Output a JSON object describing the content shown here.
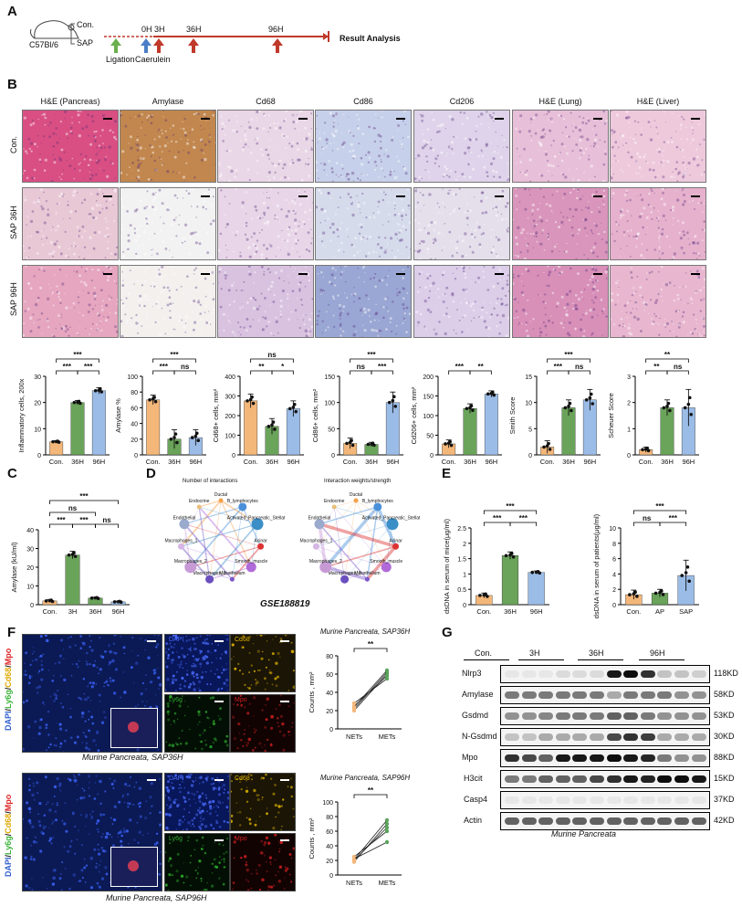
{
  "panelA": {
    "letter": "A",
    "strain": "C57Bl/6",
    "con": "Con.",
    "sap": "SAP",
    "t0": "0H",
    "t3": "3H",
    "t36": "36H",
    "t96": "96H",
    "ligation": "Ligation",
    "caerulein": "Caerulein",
    "result": "Result Analysis",
    "colors": {
      "ligation": "#6ab04c",
      "caerulein": "#4a7ec6",
      "injury": "#c0392b"
    }
  },
  "panelB": {
    "letter": "B",
    "columns": [
      "H&E (Pancreas)",
      "Amylase",
      "Cd68",
      "Cd86",
      "Cd206",
      "H&E (Lung)",
      "H&E (Liver)"
    ],
    "rows": [
      "Con.",
      "SAP 36H",
      "SAP 96H"
    ]
  },
  "groups3": [
    "Con.",
    "36H",
    "96H"
  ],
  "groups4": [
    "Con.",
    "3H",
    "36H",
    "96H"
  ],
  "colors": {
    "con": "#f4b77a",
    "h3": "#6aa35a",
    "h36": "#6aa35a",
    "h96": "#9bbce6",
    "ap": "#6aa35a",
    "sap": "#9bbce6"
  },
  "chart_data": [
    {
      "type": "bar",
      "id": "b1",
      "ylabel": "Inflammatory cells, 200x",
      "categories": [
        "Con.",
        "36H",
        "96H"
      ],
      "values": [
        5,
        20,
        24.5
      ],
      "errors": [
        0.4,
        0.8,
        1.2
      ],
      "ylim": [
        0,
        30
      ],
      "ticks": [
        0,
        10,
        20,
        30
      ],
      "sig": [
        {
          "a": 0,
          "b": 2,
          "t": "***",
          "lvl": 2
        },
        {
          "a": 0,
          "b": 1,
          "t": "***",
          "lvl": 1
        },
        {
          "a": 1,
          "b": 2,
          "t": "***",
          "lvl": 1
        }
      ]
    },
    {
      "type": "bar",
      "id": "b2",
      "ylabel": "Amylase %",
      "categories": [
        "Con.",
        "36H",
        "96H"
      ],
      "values": [
        70,
        20,
        22
      ],
      "errors": [
        6,
        12,
        10
      ],
      "ylim": [
        0,
        100
      ],
      "ticks": [
        0,
        20,
        40,
        60,
        80,
        100
      ],
      "sig": [
        {
          "a": 0,
          "b": 2,
          "t": "***",
          "lvl": 2
        },
        {
          "a": 0,
          "b": 1,
          "t": "***",
          "lvl": 1
        },
        {
          "a": 1,
          "b": 2,
          "t": "ns",
          "lvl": 1
        }
      ]
    },
    {
      "type": "bar",
      "id": "b3",
      "ylabel": "Cd68+ cells, mm²",
      "categories": [
        "Con.",
        "36H",
        "96H"
      ],
      "values": [
        275,
        145,
        235
      ],
      "errors": [
        35,
        40,
        40
      ],
      "ylim": [
        0,
        400
      ],
      "ticks": [
        0,
        100,
        200,
        300,
        400
      ],
      "sig": [
        {
          "a": 0,
          "b": 2,
          "t": "ns",
          "lvl": 2
        },
        {
          "a": 0,
          "b": 1,
          "t": "**",
          "lvl": 1
        },
        {
          "a": 1,
          "b": 2,
          "t": "*",
          "lvl": 1
        }
      ]
    },
    {
      "type": "bar",
      "id": "b4",
      "ylabel": "Cd86+ cells, mm²",
      "categories": [
        "Con.",
        "36H",
        "96H"
      ],
      "values": [
        22,
        20,
        100
      ],
      "errors": [
        10,
        4,
        20
      ],
      "ylim": [
        0,
        150
      ],
      "ticks": [
        0,
        50,
        100,
        150
      ],
      "sig": [
        {
          "a": 0,
          "b": 2,
          "t": "***",
          "lvl": 2
        },
        {
          "a": 0,
          "b": 1,
          "t": "ns",
          "lvl": 1
        },
        {
          "a": 1,
          "b": 2,
          "t": "***",
          "lvl": 1
        }
      ]
    },
    {
      "type": "bar",
      "id": "b5",
      "ylabel": "Cd206+ cells, mm²",
      "categories": [
        "Con.",
        "36H",
        "96H"
      ],
      "values": [
        28,
        118,
        155
      ],
      "errors": [
        10,
        12,
        8
      ],
      "ylim": [
        0,
        200
      ],
      "ticks": [
        0,
        50,
        100,
        150,
        200
      ],
      "sig": [
        {
          "a": 0,
          "b": 1,
          "t": "***",
          "lvl": 1
        },
        {
          "a": 1,
          "b": 2,
          "t": "**",
          "lvl": 1
        }
      ]
    },
    {
      "type": "bar",
      "id": "b6",
      "ylabel": "Smith Score",
      "categories": [
        "Con.",
        "36H",
        "96H"
      ],
      "values": [
        1.5,
        9,
        10.5
      ],
      "errors": [
        1.2,
        1.5,
        2
      ],
      "ylim": [
        0,
        15
      ],
      "ticks": [
        0,
        5,
        10,
        15
      ],
      "sig": [
        {
          "a": 0,
          "b": 2,
          "t": "***",
          "lvl": 2
        },
        {
          "a": 0,
          "b": 1,
          "t": "***",
          "lvl": 1
        },
        {
          "a": 1,
          "b": 2,
          "t": "ns",
          "lvl": 1
        }
      ]
    },
    {
      "type": "bar",
      "id": "b7",
      "ylabel": "Scheuer Score",
      "categories": [
        "Con.",
        "36H",
        "96H"
      ],
      "values": [
        0.2,
        1.8,
        1.8
      ],
      "errors": [
        0.1,
        0.3,
        0.7
      ],
      "ylim": [
        0,
        3
      ],
      "ticks": [
        0,
        1,
        2,
        3
      ],
      "sig": [
        {
          "a": 0,
          "b": 2,
          "t": "**",
          "lvl": 2
        },
        {
          "a": 0,
          "b": 1,
          "t": "**",
          "lvl": 1
        },
        {
          "a": 1,
          "b": 2,
          "t": "ns",
          "lvl": 1
        }
      ]
    },
    {
      "type": "bar",
      "id": "c",
      "ylabel": "Amylase (kU/ml)",
      "categories": [
        "Con.",
        "3H",
        "36H",
        "96H"
      ],
      "values": [
        2,
        26.5,
        3.5,
        1.5
      ],
      "errors": [
        0.8,
        2,
        0.5,
        0.4
      ],
      "ylim": [
        0,
        40
      ],
      "ticks": [
        0,
        10,
        20,
        30,
        40
      ],
      "sig": [
        {
          "a": 0,
          "b": 3,
          "t": "***",
          "lvl": 3
        },
        {
          "a": 0,
          "b": 2,
          "t": "ns",
          "lvl": 2
        },
        {
          "a": 0,
          "b": 1,
          "t": "***",
          "lvl": 1
        },
        {
          "a": 1,
          "b": 2,
          "t": "***",
          "lvl": 1
        },
        {
          "a": 2,
          "b": 3,
          "t": "ns",
          "lvl": 1
        }
      ]
    },
    {
      "type": "bar",
      "id": "e1",
      "ylabel": "dsDNA in serum of mice(μg/ml)",
      "categories": [
        "Con.",
        "36H",
        "96H"
      ],
      "values": [
        0.3,
        1.6,
        1.05
      ],
      "errors": [
        0.08,
        0.12,
        0.05
      ],
      "ylim": [
        0,
        2.5
      ],
      "ticks": [
        0,
        0.5,
        1,
        1.5,
        2,
        2.5
      ],
      "sig": [
        {
          "a": 0,
          "b": 2,
          "t": "***",
          "lvl": 2
        },
        {
          "a": 0,
          "b": 1,
          "t": "***",
          "lvl": 1
        },
        {
          "a": 1,
          "b": 2,
          "t": "***",
          "lvl": 1
        }
      ]
    },
    {
      "type": "bar",
      "id": "e2",
      "ylabel": "dsDNA in serum of patients(μg/ml)",
      "categories": [
        "Con.",
        "AP",
        "SAP"
      ],
      "values": [
        1.3,
        1.5,
        3.8
      ],
      "errors": [
        0.6,
        0.5,
        2
      ],
      "ylim": [
        0,
        10
      ],
      "ticks": [
        0,
        2,
        4,
        6,
        8,
        10
      ],
      "sig": [
        {
          "a": 0,
          "b": 2,
          "t": "***",
          "lvl": 2
        },
        {
          "a": 0,
          "b": 1,
          "t": "ns",
          "lvl": 1
        },
        {
          "a": 1,
          "b": 2,
          "t": "***",
          "lvl": 1
        }
      ]
    },
    {
      "type": "line",
      "id": "f1",
      "title": "Murine Pancreata, SAP36H",
      "ylabel": "Counts , mm²",
      "categories": [
        "NETs",
        "METs"
      ],
      "pairs": [
        [
          20,
          60
        ],
        [
          22,
          62
        ],
        [
          25,
          58
        ],
        [
          28,
          55
        ],
        [
          24,
          64
        ]
      ],
      "ylim": [
        0,
        80
      ],
      "ticks": [
        0,
        20,
        40,
        60,
        80
      ],
      "sig": "**"
    },
    {
      "type": "line",
      "id": "f2",
      "title": "Murine Pancreata, SAP96H",
      "ylabel": "Counts , mm²",
      "categories": [
        "NETs",
        "METs"
      ],
      "pairs": [
        [
          18,
          70
        ],
        [
          20,
          65
        ],
        [
          22,
          45
        ],
        [
          25,
          60
        ],
        [
          21,
          75
        ]
      ],
      "ylim": [
        0,
        100
      ],
      "ticks": [
        0,
        20,
        40,
        60,
        80,
        100
      ],
      "sig": "**"
    }
  ],
  "panelC": {
    "letter": "C"
  },
  "panelD": {
    "letter": "D",
    "title1": "Number of interactions",
    "title2": "Interaction weights/strength",
    "nodes": [
      "Ductal",
      "B_lymphocytes",
      "Activated_Pancreatic_Stellate",
      "Acinar",
      "Smooth_muscle",
      "Mesothelium",
      "Macrophages_3",
      "Macrophages_2",
      "Macrophages_1",
      "Endothelial",
      "Endocrine"
    ],
    "caption": "GSE188819"
  },
  "panelE": {
    "letter": "E"
  },
  "panelF": {
    "letter": "F",
    "overlay_label": "DAPI/Ly6g/Cd68/Mpo",
    "caption1": "Murine Pancreata, SAP36H",
    "caption2": "Murine Pancreata, SAP96H",
    "channels": [
      "DAPI",
      "Cd68",
      "Ly6g",
      "Mpo"
    ]
  },
  "panelG": {
    "letter": "G",
    "lanes": [
      "Con.",
      "3H",
      "36H",
      "96H"
    ],
    "proteins": [
      "Nlrp3",
      "Amylase",
      "Gsdmd",
      "N-Gsdmd",
      "Mpo",
      "H3cit",
      "Casp4",
      "Actin"
    ],
    "sizes": [
      "118KD",
      "58KD",
      "53KD",
      "30KD",
      "88KD",
      "15KD",
      "37KD",
      "42KD"
    ],
    "caption": "Murine Pancreata"
  }
}
